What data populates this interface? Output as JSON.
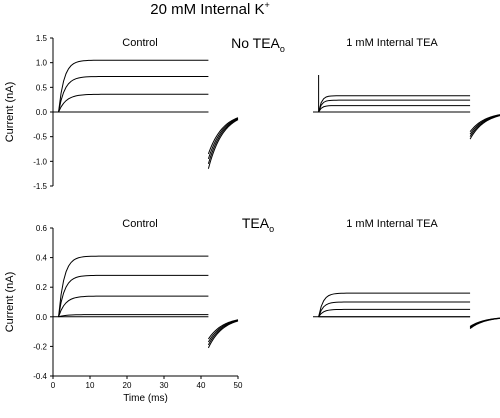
{
  "figure_title": "20 mM Internal K",
  "figure_title_sup": "+",
  "chart_data": [
    {
      "type": "line",
      "condition_label": "No TEA",
      "condition_sub": "o",
      "ylabel": "Current (nA)",
      "xlabel": "",
      "xlim": [
        0,
        50
      ],
      "ylim": [
        -1.5,
        1.5
      ],
      "yticks": [
        "1.5",
        "1.0",
        "0.5",
        "0.0",
        "-0.5",
        "-1.0",
        "-1.5"
      ],
      "ytick_values": [
        1.5,
        1.0,
        0.5,
        0.0,
        -0.5,
        -1.0,
        -1.5
      ],
      "panels": [
        {
          "title": "Control",
          "pulse_start": 1.5,
          "pulse_end": 42,
          "series": [
            {
              "steady": 1.05,
              "tau": 1.5,
              "tail_peak": -1.15
            },
            {
              "steady": 0.72,
              "tau": 1.7,
              "tail_peak": -1.05
            },
            {
              "steady": 0.36,
              "tau": 2.0,
              "tail_peak": -0.95
            },
            {
              "steady": 0.0,
              "tau": 2.0,
              "tail_peak": -0.85
            }
          ]
        },
        {
          "title": "1 mM Internal TEA",
          "pulse_start": 1.5,
          "pulse_end": 42,
          "series": [
            {
              "steady": 0.33,
              "tau": 0.8,
              "tail_peak": -0.55
            },
            {
              "steady": 0.24,
              "tau": 0.8,
              "tail_peak": -0.5
            },
            {
              "steady": 0.13,
              "tau": 0.8,
              "tail_peak": -0.45
            },
            {
              "steady": 0.0,
              "tau": 0.8,
              "tail_peak": -0.4
            }
          ]
        }
      ]
    },
    {
      "type": "line",
      "condition_label": "TEA",
      "condition_sub": "o",
      "ylabel": "Current (nA)",
      "xlabel": "Time (ms)",
      "xlim": [
        0,
        50
      ],
      "ylim": [
        -0.4,
        0.6
      ],
      "xticks": [
        "0",
        "10",
        "20",
        "30",
        "40",
        "50"
      ],
      "xtick_values": [
        0,
        10,
        20,
        30,
        40,
        50
      ],
      "yticks": [
        "0.6",
        "0.4",
        "0.2",
        "0.0",
        "-0.2",
        "-0.4"
      ],
      "ytick_values": [
        0.6,
        0.4,
        0.2,
        0.0,
        -0.2,
        -0.4
      ],
      "panels": [
        {
          "title": "Control",
          "pulse_start": 1.5,
          "pulse_end": 42,
          "series": [
            {
              "steady": 0.41,
              "tau": 1.5,
              "tail_peak": -0.21
            },
            {
              "steady": 0.28,
              "tau": 1.6,
              "tail_peak": -0.19
            },
            {
              "steady": 0.14,
              "tau": 1.8,
              "tail_peak": -0.17
            },
            {
              "steady": 0.015,
              "tau": 2.0,
              "tail_peak": -0.15
            }
          ]
        },
        {
          "title": "1 mM Internal TEA",
          "pulse_start": 1.5,
          "pulse_end": 42,
          "series": [
            {
              "steady": 0.16,
              "tau": 1.2,
              "tail_peak": -0.08
            },
            {
              "steady": 0.1,
              "tau": 1.2,
              "tail_peak": -0.075
            },
            {
              "steady": 0.05,
              "tau": 1.2,
              "tail_peak": -0.07
            },
            {
              "steady": 0.0,
              "tau": 1.2,
              "tail_peak": -0.065
            }
          ]
        }
      ]
    }
  ]
}
